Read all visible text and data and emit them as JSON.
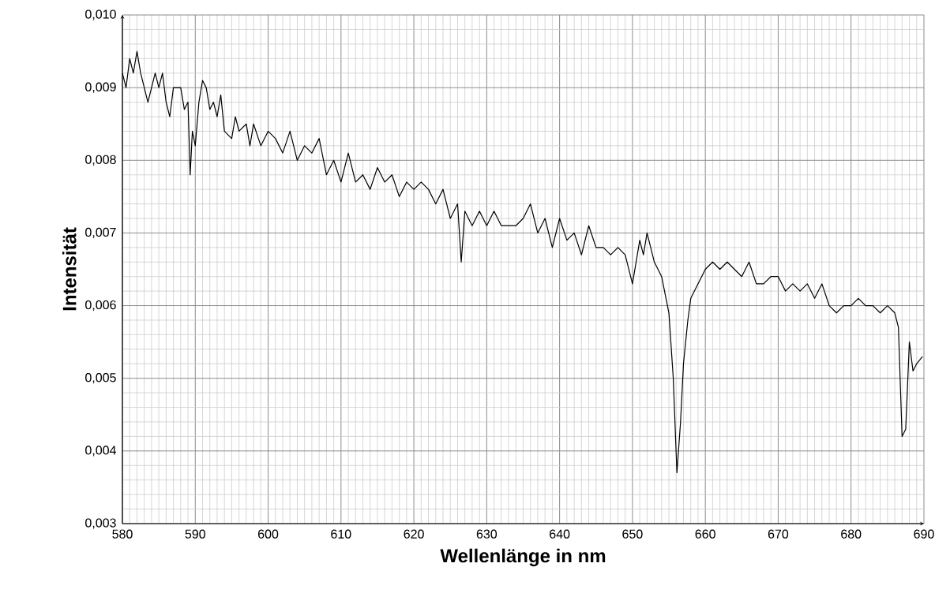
{
  "chart_data": {
    "type": "line",
    "xlabel": "Wellenlänge in nm",
    "ylabel": "Intensität",
    "grid": true,
    "marker": "none",
    "line_style": "solid",
    "xlim": [
      580,
      690
    ],
    "xticks": [
      580,
      590,
      600,
      610,
      620,
      630,
      640,
      650,
      660,
      670,
      680,
      690
    ],
    "ylim": [
      0.003,
      0.01
    ],
    "yticks": [
      {
        "value": 0.003,
        "label": "0,003"
      },
      {
        "value": 0.004,
        "label": "0,004"
      },
      {
        "value": 0.005,
        "label": "0,005"
      },
      {
        "value": 0.006,
        "label": "0,006"
      },
      {
        "value": 0.007,
        "label": "0,007"
      },
      {
        "value": 0.008,
        "label": "0,008"
      },
      {
        "value": 0.009,
        "label": "0,009"
      },
      {
        "value": 0.01,
        "label": "0,010"
      }
    ],
    "series": [
      {
        "color": "#000000",
        "x": [
          580,
          580.5,
          581,
          581.5,
          582,
          582.5,
          583,
          583.5,
          584,
          584.5,
          585,
          585.5,
          586,
          586.5,
          587,
          588,
          588.5,
          589,
          589.3,
          589.6,
          590,
          590.5,
          591,
          591.5,
          592,
          592.5,
          593,
          593.5,
          594,
          595,
          595.5,
          596,
          597,
          597.5,
          598,
          599,
          600,
          601,
          602,
          603,
          604,
          605,
          606,
          607,
          608,
          609,
          610,
          611,
          612,
          613,
          614,
          615,
          616,
          617,
          618,
          619,
          620,
          621,
          622,
          623,
          624,
          625,
          626,
          626.5,
          627,
          628,
          629,
          630,
          631,
          632,
          633,
          634,
          635,
          636,
          637,
          638,
          639,
          640,
          641,
          642,
          643,
          644,
          645,
          646,
          647,
          648,
          649,
          650,
          651,
          651.5,
          652,
          653,
          654,
          655,
          655.6,
          656.1,
          656.6,
          657,
          657.6,
          658,
          659,
          660,
          661,
          662,
          663,
          664,
          665,
          666,
          667,
          668,
          669,
          670,
          671,
          672,
          673,
          674,
          675,
          676,
          677,
          678,
          679,
          680,
          681,
          682,
          683,
          684,
          685,
          686,
          686.5,
          687,
          687.5,
          688,
          688.5,
          689,
          689.8
        ],
        "values": [
          0.0092,
          0.009,
          0.0094,
          0.0092,
          0.0095,
          0.0092,
          0.009,
          0.0088,
          0.009,
          0.0092,
          0.009,
          0.0092,
          0.0088,
          0.0086,
          0.009,
          0.009,
          0.0087,
          0.0088,
          0.0078,
          0.0084,
          0.0082,
          0.0088,
          0.0091,
          0.009,
          0.0087,
          0.0088,
          0.0086,
          0.0089,
          0.0084,
          0.0083,
          0.0086,
          0.0084,
          0.0085,
          0.0082,
          0.0085,
          0.0082,
          0.0084,
          0.0083,
          0.0081,
          0.0084,
          0.008,
          0.0082,
          0.0081,
          0.0083,
          0.0078,
          0.008,
          0.0077,
          0.0081,
          0.0077,
          0.0078,
          0.0076,
          0.0079,
          0.0077,
          0.0078,
          0.0075,
          0.0077,
          0.0076,
          0.0077,
          0.0076,
          0.0074,
          0.0076,
          0.0072,
          0.0074,
          0.0066,
          0.0073,
          0.0071,
          0.0073,
          0.0071,
          0.0073,
          0.0071,
          0.0071,
          0.0071,
          0.0072,
          0.0074,
          0.007,
          0.0072,
          0.0068,
          0.0072,
          0.0069,
          0.007,
          0.0067,
          0.0071,
          0.0068,
          0.0068,
          0.0067,
          0.0068,
          0.0067,
          0.0063,
          0.0069,
          0.0067,
          0.007,
          0.0066,
          0.0064,
          0.0059,
          0.005,
          0.0037,
          0.0044,
          0.0052,
          0.0058,
          0.0061,
          0.0063,
          0.0065,
          0.0066,
          0.0065,
          0.0066,
          0.0065,
          0.0064,
          0.0066,
          0.0063,
          0.0063,
          0.0064,
          0.0064,
          0.0062,
          0.0063,
          0.0062,
          0.0063,
          0.0061,
          0.0063,
          0.006,
          0.0059,
          0.006,
          0.006,
          0.0061,
          0.006,
          0.006,
          0.0059,
          0.006,
          0.0059,
          0.0057,
          0.0042,
          0.0043,
          0.0055,
          0.0051,
          0.0052,
          0.0053
        ]
      }
    ]
  }
}
